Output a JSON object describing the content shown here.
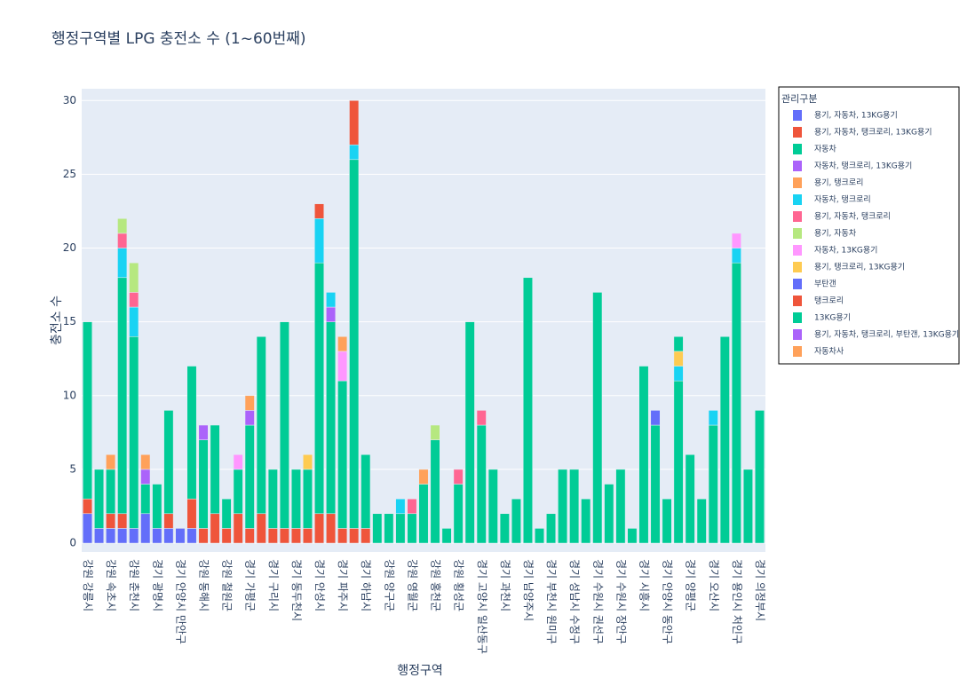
{
  "chart_data": {
    "type": "bar",
    "stacked": true,
    "title": "행정구역별 LPG 충전소 수 (1~60번째)",
    "x_label": "행정구역",
    "y_label": "충전소 수",
    "legend_title": "관리구분",
    "categories": [
      "강원 강릉시",
      null,
      "강원 속초시",
      null,
      "강원 춘천시",
      null,
      "경기 광명시",
      null,
      "경기 안양시 만안구",
      null,
      "강원 동해시",
      null,
      "강원 철원군",
      null,
      "경기 가평군",
      null,
      "경기 구리시",
      null,
      "경기 동두천시",
      null,
      "경기 안성시",
      null,
      "경기 파주시",
      null,
      "경기 하남시",
      null,
      "강원 양구군",
      null,
      "강원 영월군",
      null,
      "강원 홍천군",
      null,
      "강원 횡성군",
      null,
      "경기 고양시 일산동구",
      null,
      "경기 과천시",
      null,
      "경기 남양주시",
      null,
      "경기 부천시 원미구",
      null,
      "경기 성남시 수정구",
      null,
      "경기 수원시 권선구",
      null,
      "경기 수원시 장안구",
      null,
      "경기 시흥시",
      null,
      "경기 안양시 동안구",
      null,
      "경기 양평군",
      null,
      "경기 오산시",
      null,
      "경기 용인시 처인구",
      null,
      "경기 의정부시"
    ],
    "series": [
      {
        "name": "용기, 자동차, 13KG용기",
        "color": "#636efa",
        "values": [
          2,
          1,
          1,
          1,
          1,
          2,
          1,
          1,
          1,
          1,
          0,
          0,
          0,
          0,
          0,
          0,
          0,
          0,
          0,
          0,
          0,
          0,
          0,
          0,
          0,
          0,
          0,
          0,
          0,
          0,
          0,
          0,
          0,
          0,
          0,
          0,
          0,
          0,
          0,
          0,
          0,
          0,
          0,
          0,
          0,
          0,
          0,
          0,
          0,
          0,
          0,
          0,
          0,
          0,
          0,
          0,
          0,
          0,
          0
        ]
      },
      {
        "name": "용기, 자동차, 탱크로리, 13KG용기",
        "color": "#EF553B",
        "values": [
          1,
          0,
          1,
          1,
          0,
          0,
          0,
          1,
          0,
          2,
          1,
          2,
          1,
          2,
          1,
          2,
          1,
          1,
          1,
          1,
          2,
          2,
          1,
          1,
          1,
          0,
          0,
          0,
          0,
          0,
          0,
          0,
          0,
          0,
          0,
          0,
          0,
          0,
          0,
          0,
          0,
          0,
          0,
          0,
          0,
          0,
          0,
          0,
          0,
          0,
          0,
          0,
          0,
          0,
          0,
          0,
          0,
          0,
          0
        ]
      },
      {
        "name": "자동차",
        "color": "#00cc96",
        "values": [
          12,
          4,
          3,
          16,
          13,
          2,
          3,
          7,
          0,
          9,
          6,
          6,
          2,
          3,
          7,
          12,
          4,
          14,
          4,
          4,
          17,
          13,
          10,
          25,
          5,
          2,
          2,
          2,
          2,
          4,
          7,
          1,
          4,
          15,
          8,
          5,
          2,
          3,
          18,
          1,
          2,
          5,
          5,
          3,
          17,
          4,
          5,
          1,
          12,
          8,
          3,
          11,
          6,
          3,
          8,
          14,
          19,
          5,
          9
        ]
      },
      {
        "name": "자동차, 탱크로리, 13KG용기",
        "color": "#ab63fa",
        "values": [
          0,
          0,
          0,
          0,
          0,
          1,
          0,
          0,
          0,
          0,
          1,
          0,
          0,
          0,
          1,
          0,
          0,
          0,
          0,
          0,
          0,
          1,
          0,
          0,
          0,
          0,
          0,
          0,
          0,
          0,
          0,
          0,
          0,
          0,
          0,
          0,
          0,
          0,
          0,
          0,
          0,
          0,
          0,
          0,
          0,
          0,
          0,
          0,
          0,
          0,
          0,
          0,
          0,
          0,
          0,
          0,
          0,
          0,
          0
        ]
      },
      {
        "name": "용기, 탱크로리",
        "color": "#FFA15A",
        "values": [
          0,
          0,
          1,
          0,
          0,
          1,
          0,
          0,
          0,
          0,
          0,
          0,
          0,
          0,
          1,
          0,
          0,
          0,
          0,
          0,
          0,
          0,
          0,
          0,
          0,
          0,
          0,
          0,
          0,
          1,
          0,
          0,
          0,
          0,
          0,
          0,
          0,
          0,
          0,
          0,
          0,
          0,
          0,
          0,
          0,
          0,
          0,
          0,
          0,
          0,
          0,
          0,
          0,
          0,
          0,
          0,
          0,
          0,
          0
        ]
      },
      {
        "name": "자동차, 탱크로리",
        "color": "#19d3f3",
        "values": [
          0,
          0,
          0,
          2,
          2,
          0,
          0,
          0,
          0,
          0,
          0,
          0,
          0,
          0,
          0,
          0,
          0,
          0,
          0,
          0,
          3,
          1,
          0,
          1,
          0,
          0,
          0,
          1,
          0,
          0,
          0,
          0,
          0,
          0,
          0,
          0,
          0,
          0,
          0,
          0,
          0,
          0,
          0,
          0,
          0,
          0,
          0,
          0,
          0,
          0,
          0,
          1,
          0,
          0,
          1,
          0,
          1,
          0,
          0
        ]
      },
      {
        "name": "용기, 자동차, 탱크로리",
        "color": "#FF6692",
        "values": [
          0,
          0,
          0,
          1,
          1,
          0,
          0,
          0,
          0,
          0,
          0,
          0,
          0,
          0,
          0,
          0,
          0,
          0,
          0,
          0,
          0,
          0,
          0,
          0,
          0,
          0,
          0,
          0,
          1,
          0,
          0,
          0,
          1,
          0,
          1,
          0,
          0,
          0,
          0,
          0,
          0,
          0,
          0,
          0,
          0,
          0,
          0,
          0,
          0,
          0,
          0,
          0,
          0,
          0,
          0,
          0,
          0,
          0,
          0
        ]
      },
      {
        "name": "용기, 자동차",
        "color": "#B6E880",
        "values": [
          0,
          0,
          0,
          1,
          2,
          0,
          0,
          0,
          0,
          0,
          0,
          0,
          0,
          0,
          0,
          0,
          0,
          0,
          0,
          0,
          0,
          0,
          0,
          0,
          0,
          0,
          0,
          0,
          0,
          0,
          1,
          0,
          0,
          0,
          0,
          0,
          0,
          0,
          0,
          0,
          0,
          0,
          0,
          0,
          0,
          0,
          0,
          0,
          0,
          0,
          0,
          0,
          0,
          0,
          0,
          0,
          0,
          0,
          0
        ]
      },
      {
        "name": "자동차, 13KG용기",
        "color": "#FF97FF",
        "values": [
          0,
          0,
          0,
          0,
          0,
          0,
          0,
          0,
          0,
          0,
          0,
          0,
          0,
          1,
          0,
          0,
          0,
          0,
          0,
          0,
          0,
          0,
          2,
          0,
          0,
          0,
          0,
          0,
          0,
          0,
          0,
          0,
          0,
          0,
          0,
          0,
          0,
          0,
          0,
          0,
          0,
          0,
          0,
          0,
          0,
          0,
          0,
          0,
          0,
          0,
          0,
          0,
          0,
          0,
          0,
          0,
          1,
          0,
          0
        ]
      },
      {
        "name": "용기, 탱크로리, 13KG용기",
        "color": "#FECB52",
        "values": [
          0,
          0,
          0,
          0,
          0,
          0,
          0,
          0,
          0,
          0,
          0,
          0,
          0,
          0,
          0,
          0,
          0,
          0,
          0,
          1,
          0,
          0,
          0,
          0,
          0,
          0,
          0,
          0,
          0,
          0,
          0,
          0,
          0,
          0,
          0,
          0,
          0,
          0,
          0,
          0,
          0,
          0,
          0,
          0,
          0,
          0,
          0,
          0,
          0,
          0,
          0,
          1,
          0,
          0,
          0,
          0,
          0,
          0,
          0
        ]
      },
      {
        "name": "부탄갠",
        "color": "#636efa",
        "values": [
          0,
          0,
          0,
          0,
          0,
          0,
          0,
          0,
          0,
          0,
          0,
          0,
          0,
          0,
          0,
          0,
          0,
          0,
          0,
          0,
          0,
          0,
          0,
          0,
          0,
          0,
          0,
          0,
          0,
          0,
          0,
          0,
          0,
          0,
          0,
          0,
          0,
          0,
          0,
          0,
          0,
          0,
          0,
          0,
          0,
          0,
          0,
          0,
          0,
          1,
          0,
          0,
          0,
          0,
          0,
          0,
          0,
          0,
          0
        ]
      },
      {
        "name": "탱크로리",
        "color": "#EF553B",
        "values": [
          0,
          0,
          0,
          0,
          0,
          0,
          0,
          0,
          0,
          0,
          0,
          0,
          0,
          0,
          0,
          0,
          0,
          0,
          0,
          0,
          1,
          0,
          0,
          3,
          0,
          0,
          0,
          0,
          0,
          0,
          0,
          0,
          0,
          0,
          0,
          0,
          0,
          0,
          0,
          0,
          0,
          0,
          0,
          0,
          0,
          0,
          0,
          0,
          0,
          0,
          0,
          0,
          0,
          0,
          0,
          0,
          0,
          0,
          0
        ]
      },
      {
        "name": "13KG용기",
        "color": "#00cc96",
        "values": [
          0,
          0,
          0,
          0,
          0,
          0,
          0,
          0,
          0,
          0,
          0,
          0,
          0,
          0,
          0,
          0,
          0,
          0,
          0,
          0,
          0,
          0,
          0,
          0,
          0,
          0,
          0,
          0,
          0,
          0,
          0,
          0,
          0,
          0,
          0,
          0,
          0,
          0,
          0,
          0,
          0,
          0,
          0,
          0,
          0,
          0,
          0,
          0,
          0,
          0,
          0,
          1,
          0,
          0,
          0,
          0,
          0,
          0,
          0
        ]
      },
      {
        "name": "용기, 자동차, 탱크로리, 부탄갠, 13KG용기",
        "color": "#ab63fa",
        "values": [
          0,
          0,
          0,
          0,
          0,
          0,
          0,
          0,
          0,
          0,
          0,
          0,
          0,
          0,
          0,
          0,
          0,
          0,
          0,
          0,
          0,
          0,
          0,
          0,
          0,
          0,
          0,
          0,
          0,
          0,
          0,
          0,
          0,
          0,
          0,
          0,
          0,
          0,
          0,
          0,
          0,
          0,
          0,
          0,
          0,
          0,
          0,
          0,
          0,
          0,
          0,
          0,
          0,
          0,
          0,
          0,
          0,
          0,
          0
        ]
      },
      {
        "name": "자동차사",
        "color": "#FFA15A",
        "values": [
          0,
          0,
          0,
          0,
          0,
          0,
          0,
          0,
          0,
          0,
          0,
          0,
          0,
          0,
          0,
          0,
          0,
          0,
          0,
          0,
          0,
          0,
          1,
          0,
          0,
          0,
          0,
          0,
          0,
          0,
          0,
          0,
          0,
          0,
          0,
          0,
          0,
          0,
          0,
          0,
          0,
          0,
          0,
          0,
          0,
          0,
          0,
          0,
          0,
          0,
          0,
          0,
          0,
          0,
          0,
          0,
          0,
          0,
          0
        ]
      }
    ],
    "ylim": [
      -0.6,
      30.8
    ],
    "yticks": [
      0,
      5,
      10,
      15,
      20,
      25,
      30
    ],
    "grid": true,
    "legend": "right"
  }
}
